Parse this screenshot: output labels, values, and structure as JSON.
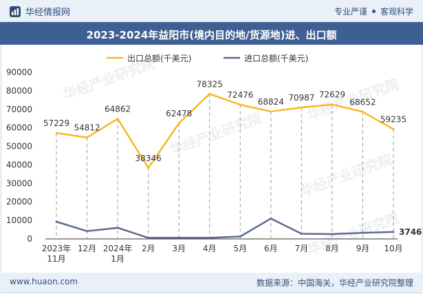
{
  "header": {
    "brand": "华经情报网",
    "tagline_left": "专业严谨",
    "tagline_right": "客观科学"
  },
  "title": "2023-2024年益阳市(境内目的地/货源地)进、出口额",
  "footer": {
    "site": "www.huaon.com",
    "source": "数据来源：中国海关，华经产业研究院整理"
  },
  "watermark": "华经产业研究院",
  "colors": {
    "export": "#f6b91f",
    "import": "#5b6a8f",
    "title_bg": "#3e5f92",
    "bar_bg": "#eaf0f8"
  },
  "chart_data": {
    "type": "line",
    "categories": [
      "2023年\n11月",
      "12月",
      "2024年\n1月",
      "2月",
      "3月",
      "4月",
      "5月",
      "6月",
      "7月",
      "8月",
      "9月",
      "10月"
    ],
    "series": [
      {
        "name": "出口总额(千美元)",
        "values": [
          57229,
          54812,
          64862,
          38346,
          62478,
          78325,
          72476,
          68824,
          70987,
          72629,
          68652,
          59235
        ]
      },
      {
        "name": "进口总额(千美元)",
        "values": [
          9300,
          4200,
          6000,
          600,
          600,
          600,
          1300,
          11000,
          2800,
          2600,
          3300,
          3746
        ]
      }
    ],
    "import_labels": {
      "11": "3746"
    },
    "yticks": [
      0,
      10000,
      20000,
      30000,
      40000,
      50000,
      60000,
      70000,
      80000,
      90000
    ],
    "ylim": [
      0,
      90000
    ],
    "grid": false,
    "vertical_guides": true,
    "legend_position": "top-center"
  }
}
